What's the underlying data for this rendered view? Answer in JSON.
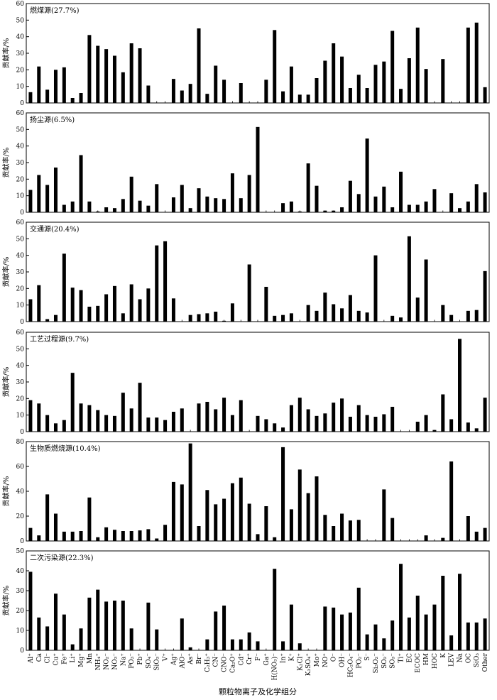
{
  "chart_data": {
    "type": "bar",
    "xlabel": "颗粒物离子及化学组分",
    "ylabel": "贡献率/%",
    "categories": [
      "Al⁺",
      "Ca",
      "Cl⁻",
      "Cu⁺",
      "Fe⁺",
      "Li⁺",
      "Mg⁺",
      "Mn",
      "NH₄⁺",
      "NO₂⁻",
      "NO₃⁻",
      "Na⁺",
      "PO₃⁻",
      "Pb⁺",
      "SO₄⁻",
      "SiO₃⁻",
      "V⁺",
      "Ag⁺",
      "AlO⁻",
      "As⁺",
      "Br⁻",
      "C₂H₃⁺",
      "CN⁻",
      "CNO⁻",
      "Ca₂O⁺",
      "Cd⁺",
      "Cr⁺",
      "F⁻",
      "Ga⁺",
      "H(NO₃)⁻",
      "In⁺",
      "K⁺",
      "K₂Cl⁺",
      "K₃SO₄⁺",
      "Mo⁺",
      "NO⁺",
      "O⁻",
      "OH⁻",
      "HC₂O₄⁻",
      "PO₂⁻",
      "S⁻",
      "Si₃O₂⁻",
      "SO₂⁻",
      "SO₃⁻",
      "Ti⁺",
      "EC",
      "ECOC",
      "HM",
      "HOC",
      "K",
      "LEV",
      "Na",
      "OC",
      "SiO₃",
      "Other"
    ],
    "panels": [
      {
        "title": "燃煤源(27.7%)",
        "ylim": [
          0,
          60
        ],
        "yticks": [
          0,
          10,
          20,
          30,
          40,
          50,
          60
        ],
        "values": [
          6.5,
          22,
          8,
          20,
          21.5,
          3,
          6,
          41,
          34.5,
          32.5,
          28.5,
          18.5,
          36,
          33,
          10.5,
          0,
          0,
          14.5,
          7.5,
          11.5,
          45,
          5.5,
          22.5,
          14,
          0,
          12,
          0,
          0,
          14,
          44,
          7,
          22,
          5,
          5,
          15,
          25.5,
          36,
          28,
          9,
          17,
          9,
          23,
          25,
          43.5,
          8.5,
          27,
          45.5,
          20.5,
          0,
          26.5,
          0,
          0,
          45.5,
          48.5,
          9.5
        ]
      },
      {
        "title": "扬尘源(6.5%)",
        "ylim": [
          0,
          60
        ],
        "yticks": [
          0,
          10,
          20,
          30,
          40,
          50,
          60
        ],
        "values": [
          13.5,
          22.5,
          16.5,
          27,
          4.5,
          6.5,
          34.5,
          6.5,
          0.5,
          3,
          2.5,
          8,
          21.5,
          7,
          4,
          17,
          0,
          9,
          16.5,
          2.5,
          14.5,
          9.5,
          8.5,
          8,
          23.5,
          8.5,
          22.5,
          51.5,
          0,
          0,
          5.5,
          6.5,
          0.5,
          29.5,
          16,
          1,
          1,
          3,
          19,
          11,
          44.5,
          9.5,
          15.5,
          3,
          24.5,
          4.5,
          4.5,
          6.5,
          14,
          0,
          11.5,
          2.5,
          6.5,
          17,
          12
        ]
      },
      {
        "title": "交通源(20.4%)",
        "ylim": [
          0,
          60
        ],
        "yticks": [
          0,
          10,
          20,
          30,
          40,
          50,
          60
        ],
        "values": [
          13.5,
          22,
          1.5,
          4,
          41,
          20.5,
          19,
          9,
          9.5,
          16.5,
          21.5,
          5,
          22.5,
          13.5,
          20,
          46,
          48.5,
          14,
          0,
          4,
          4.5,
          5,
          6,
          0.5,
          11,
          0,
          34.5,
          0,
          21,
          3.5,
          4,
          5,
          0,
          10,
          6.5,
          17.5,
          10.5,
          8,
          16,
          6.5,
          5.5,
          40,
          0,
          3.5,
          2.5,
          51.5,
          14.5,
          37.5,
          0,
          10,
          4,
          0,
          6.5,
          7,
          30.5
        ]
      },
      {
        "title": "工艺过程源(9.7%)",
        "ylim": [
          0,
          60
        ],
        "yticks": [
          0,
          10,
          20,
          30,
          40,
          50,
          60
        ],
        "values": [
          19,
          17,
          10,
          5,
          7,
          35.5,
          17,
          16,
          13,
          10,
          9.5,
          23.5,
          14,
          29.5,
          8.5,
          8.5,
          7,
          12,
          14,
          0,
          17,
          18,
          13.5,
          20.5,
          10,
          19,
          0,
          9.5,
          7.5,
          5,
          2.5,
          16,
          20.5,
          13.5,
          9.5,
          11,
          17.5,
          20,
          9,
          16,
          10,
          9,
          10.5,
          15,
          0,
          0,
          6,
          10,
          1,
          22.5,
          7.5,
          56,
          5.5,
          2,
          20.5
        ]
      },
      {
        "title": "生物质燃烧源(10.4%)",
        "ylim": [
          0,
          80
        ],
        "yticks": [
          0,
          20,
          40,
          60,
          80
        ],
        "values": [
          10.5,
          4.5,
          37.5,
          22,
          7.5,
          7.5,
          8,
          35,
          3,
          11,
          9,
          8,
          8,
          8.5,
          9.5,
          2,
          13,
          47.5,
          45.5,
          78.5,
          12,
          41,
          29.5,
          34,
          46.5,
          51,
          30,
          5.5,
          28,
          3,
          75.5,
          25.5,
          57.5,
          38.5,
          52,
          21,
          12,
          22,
          16.5,
          17,
          0,
          0,
          41.5,
          18.5,
          0,
          0,
          0,
          4.5,
          0,
          2.5,
          64,
          0,
          20,
          7.5,
          10.5
        ]
      },
      {
        "title": "二次污染源(22.3%)",
        "ylim": [
          0,
          50
        ],
        "yticks": [
          0,
          10,
          20,
          30,
          40,
          50
        ],
        "values": [
          39.5,
          16.5,
          12,
          28.5,
          18,
          3,
          11,
          26.5,
          30.5,
          24.5,
          25,
          25,
          11,
          0,
          24,
          10.5,
          0,
          0,
          16,
          1.5,
          0,
          5.5,
          19.5,
          22.5,
          5.5,
          5.5,
          9,
          4.5,
          0,
          41,
          4.5,
          23,
          3.5,
          0,
          0,
          22,
          21.5,
          18,
          19,
          31.5,
          8,
          13,
          6,
          15,
          43.5,
          16.5,
          27.5,
          18,
          23,
          37.5,
          7.5,
          38.5,
          14,
          14,
          16
        ]
      }
    ]
  }
}
